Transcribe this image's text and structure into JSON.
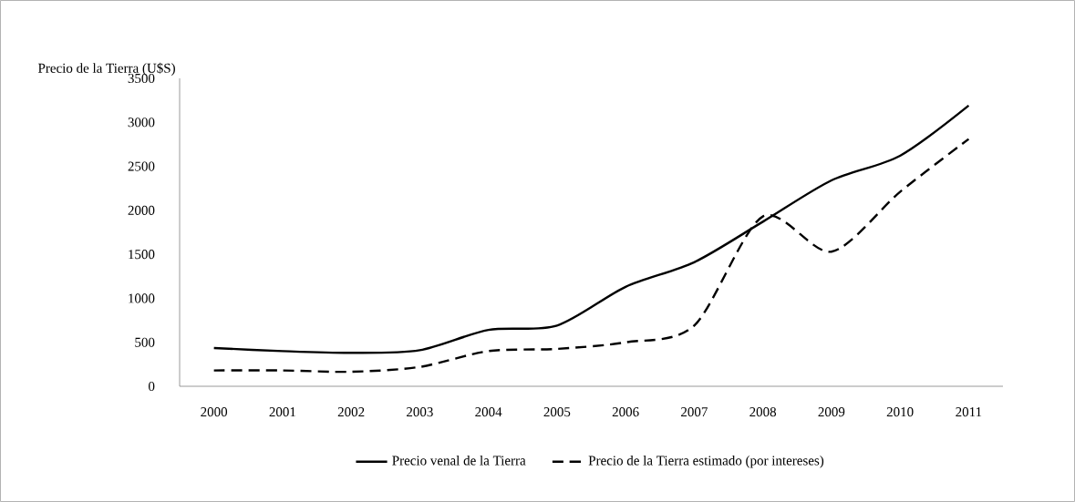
{
  "chart_data": {
    "type": "line",
    "ylabel": "Precio de la Tierra (U$S)",
    "categories": [
      "2000",
      "2001",
      "2002",
      "2003",
      "2004",
      "2005",
      "2006",
      "2007",
      "2008",
      "2009",
      "2010",
      "2011"
    ],
    "series": [
      {
        "name": "Precio venal de la Tierra",
        "color": "#000000",
        "line_style": "solid",
        "values": [
          435,
          400,
          380,
          410,
          640,
          690,
          1130,
          1410,
          1870,
          2340,
          2620,
          3190
        ]
      },
      {
        "name": "Precio de la Tierra estimado (por intereses)",
        "color": "#000000",
        "line_style": "dashed",
        "values": [
          180,
          180,
          165,
          220,
          400,
          425,
          500,
          690,
          1930,
          1530,
          2210,
          2810
        ]
      }
    ],
    "ylim": [
      0,
      3500
    ],
    "yticks": [
      0,
      500,
      1000,
      1500,
      2000,
      2500,
      3000,
      3500
    ],
    "grid": false,
    "legend": "bottom",
    "marker": "none"
  }
}
